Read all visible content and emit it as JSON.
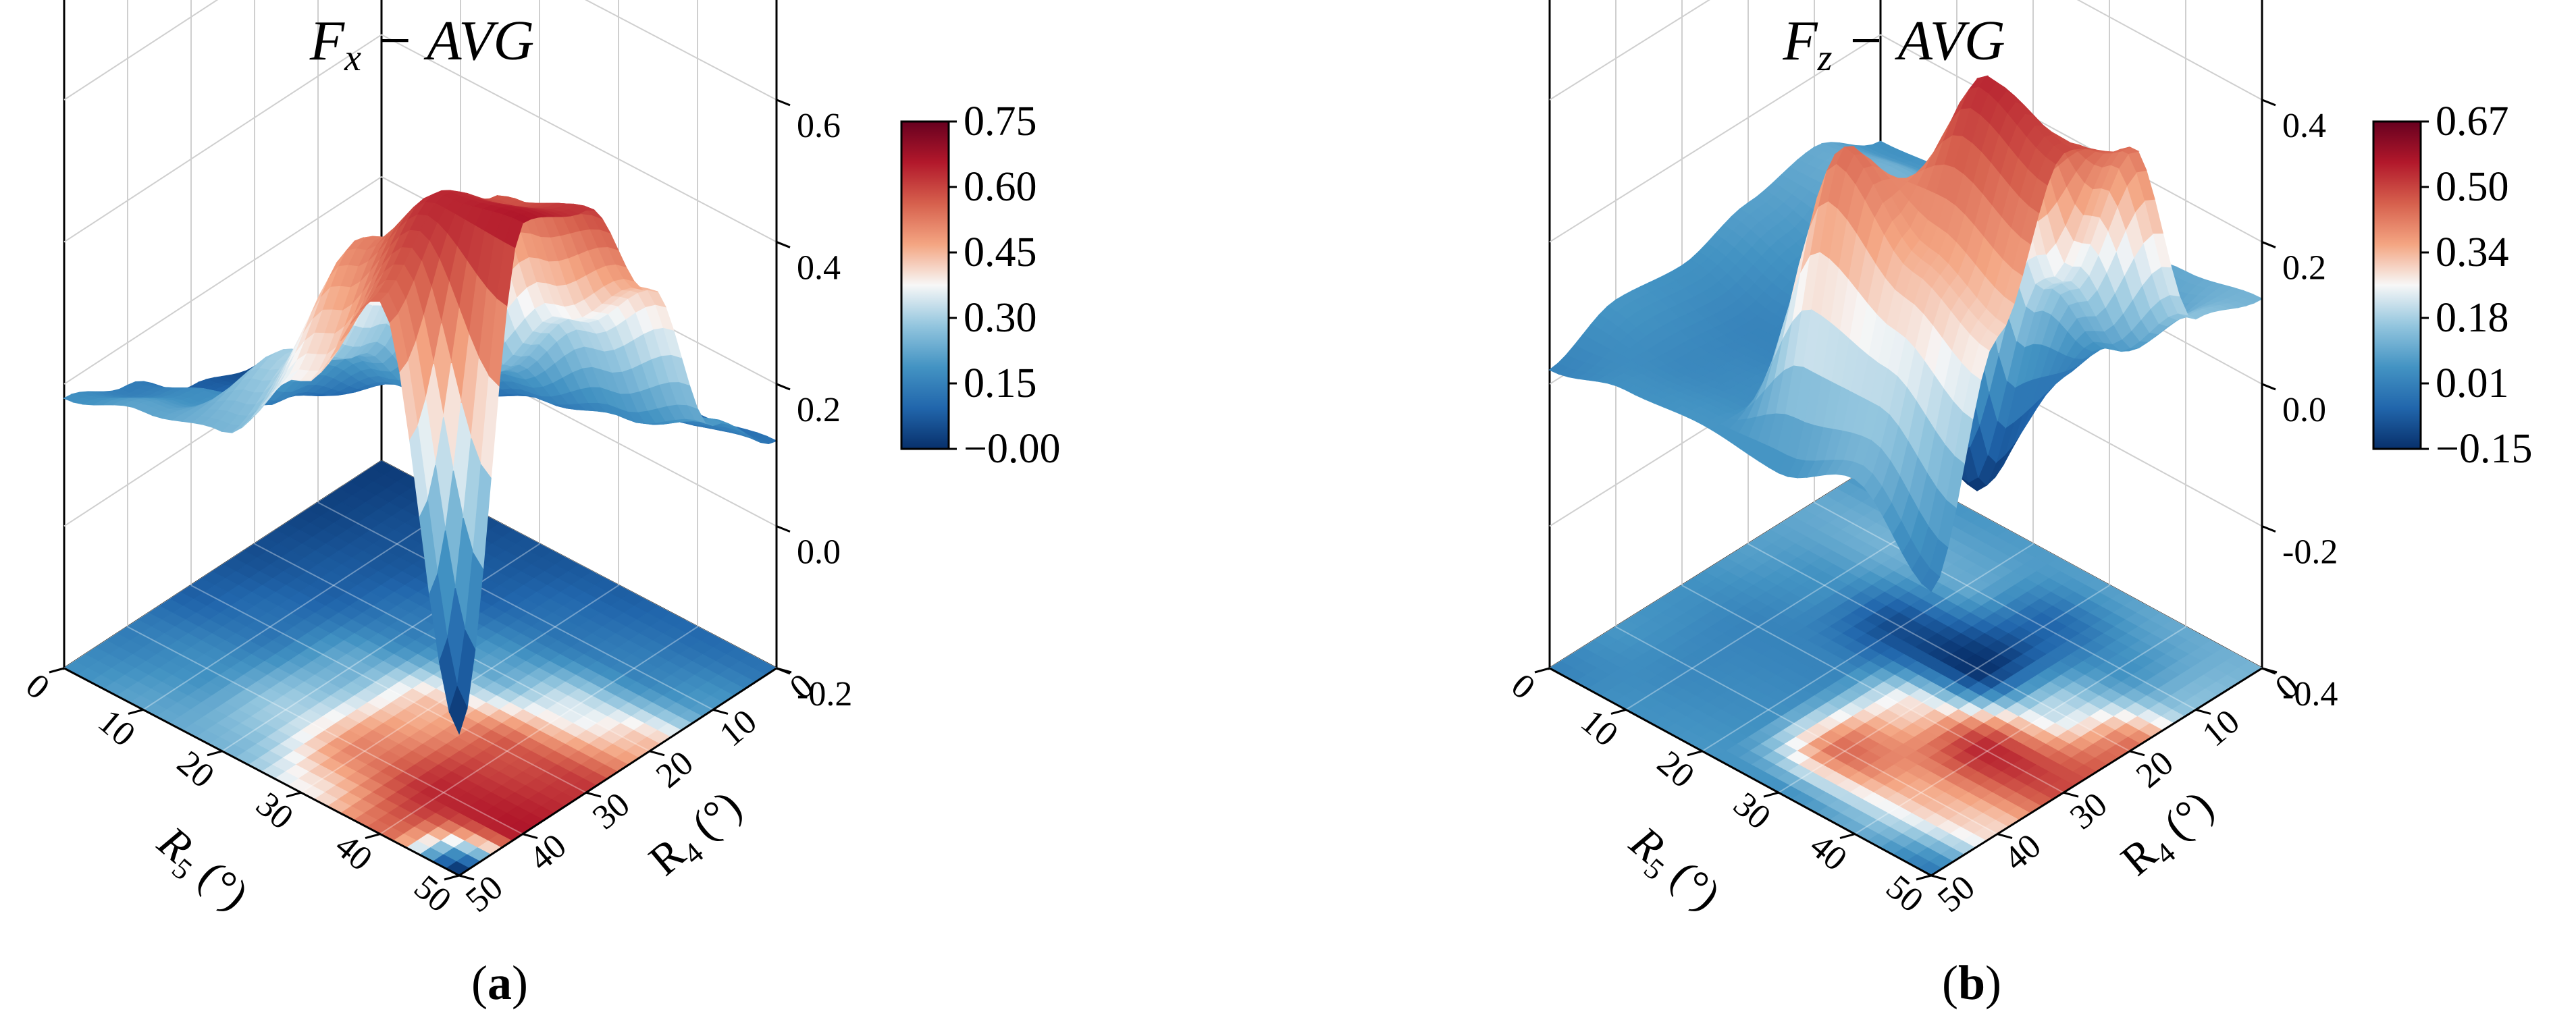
{
  "chart_data": [
    {
      "type": "surface3d",
      "panel_label": "a",
      "title": "F",
      "title_sub": "x",
      "title_rest": " − AVG",
      "xlabel_main": "R",
      "xlabel_sub": "5",
      "xlabel_unit": " (°)",
      "ylabel_main": "R",
      "ylabel_sub": "4",
      "ylabel_unit": " (°)",
      "x_ticks": [
        "0",
        "10",
        "20",
        "30",
        "40",
        "50"
      ],
      "y_ticks": [
        "0",
        "10",
        "20",
        "30",
        "40",
        "50"
      ],
      "z_ticks": [
        "-0.2",
        "0.0",
        "0.2",
        "0.4",
        "0.6"
      ],
      "zlim": [
        -0.2,
        0.75
      ],
      "colorbar_ticks": [
        "0.75",
        "0.60",
        "0.45",
        "0.30",
        "0.15",
        "−0.00"
      ],
      "colorbar_range": [
        0.0,
        0.75
      ],
      "x": [
        0,
        10,
        20,
        30,
        40,
        50
      ],
      "y": [
        0,
        10,
        20,
        30,
        40,
        50
      ],
      "z": [
        [
          0.02,
          0.03,
          0.05,
          0.08,
          0.14,
          0.18
        ],
        [
          0.04,
          0.06,
          0.08,
          0.12,
          0.18,
          0.22
        ],
        [
          0.06,
          0.08,
          0.14,
          0.24,
          0.3,
          0.25
        ],
        [
          0.08,
          0.12,
          0.22,
          0.45,
          0.52,
          0.38
        ],
        [
          0.1,
          0.15,
          0.35,
          0.58,
          0.64,
          0.55
        ],
        [
          0.12,
          0.2,
          0.45,
          0.62,
          0.66,
          0.0
        ]
      ],
      "colormap": [
        "#08306b",
        "#2166ac",
        "#4393c3",
        "#92c5de",
        "#f7f7f7",
        "#f4a582",
        "#d6604d",
        "#b2182b",
        "#67001f"
      ]
    },
    {
      "type": "surface3d",
      "panel_label": "b",
      "title": "F",
      "title_sub": "z",
      "title_rest": " − AVG",
      "xlabel_main": "R",
      "xlabel_sub": "5",
      "xlabel_unit": " (°)",
      "ylabel_main": "R",
      "ylabel_sub": "4",
      "ylabel_unit": " (°)",
      "x_ticks": [
        "0",
        "10",
        "20",
        "30",
        "40",
        "50"
      ],
      "y_ticks": [
        "0",
        "10",
        "20",
        "30",
        "40",
        "50"
      ],
      "z_ticks": [
        "-0.4",
        "-0.2",
        "0.0",
        "0.2",
        "0.4"
      ],
      "zlim": [
        -0.4,
        0.55
      ],
      "colorbar_ticks": [
        "0.67",
        "0.50",
        "0.34",
        "0.18",
        "0.01",
        "−0.15"
      ],
      "colorbar_range": [
        -0.15,
        0.67
      ],
      "x": [
        0,
        10,
        20,
        30,
        40,
        50
      ],
      "y": [
        0,
        10,
        20,
        30,
        40,
        50
      ],
      "z": [
        [
          0.05,
          0.1,
          0.08,
          0.05,
          0.06,
          0.02
        ],
        [
          0.06,
          0.12,
          0.05,
          0.02,
          0.03,
          0.05
        ],
        [
          0.07,
          0.1,
          -0.1,
          0.02,
          0.04,
          0.06
        ],
        [
          0.08,
          -0.05,
          -0.15,
          0.3,
          0.45,
          0.05
        ],
        [
          0.1,
          0.05,
          0.2,
          0.55,
          0.35,
          0.1
        ],
        [
          0.12,
          0.15,
          0.45,
          0.5,
          0.3,
          0.0
        ]
      ],
      "colormap": [
        "#08306b",
        "#2166ac",
        "#4393c3",
        "#92c5de",
        "#f7f7f7",
        "#f4a582",
        "#d6604d",
        "#b2182b",
        "#67001f"
      ]
    }
  ]
}
